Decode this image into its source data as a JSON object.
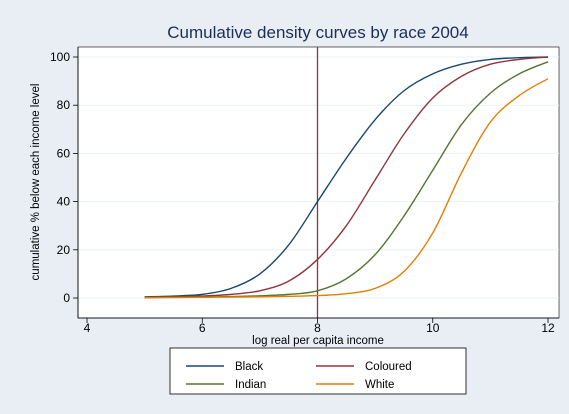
{
  "chart_data": {
    "type": "line",
    "title": "Cumulative density curves by race 2004",
    "xlabel": "log real per capita income",
    "ylabel": "cumulative % below each income level",
    "xlim": [
      4,
      12
    ],
    "ylim": [
      0,
      100
    ],
    "xticks": [
      "4",
      "6",
      "8",
      "10",
      "12"
    ],
    "yticks": [
      "0",
      "20",
      "40",
      "60",
      "80",
      "100"
    ],
    "reference_line": {
      "x": 8,
      "color": "#90353b"
    },
    "grid": "horizontal",
    "legend_position": "bottom",
    "x": [
      5,
      5.5,
      6,
      6.5,
      7,
      7.5,
      8,
      8.5,
      9,
      9.5,
      10,
      10.5,
      11,
      11.5,
      12
    ],
    "series": [
      {
        "name": "Black",
        "color": "#1a476f",
        "values": [
          0.5,
          0.8,
          1.5,
          4,
          10,
          22,
          40,
          58,
          74,
          86,
          93,
          97,
          99,
          99.7,
          100
        ]
      },
      {
        "name": "Coloured",
        "color": "#90353b",
        "values": [
          0.3,
          0.5,
          0.8,
          1.5,
          3,
          7,
          16,
          30,
          49,
          68,
          83,
          92,
          97,
          99,
          100
        ]
      },
      {
        "name": "Indian",
        "color": "#55752f",
        "values": [
          0.2,
          0.3,
          0.4,
          0.6,
          0.9,
          1.5,
          3,
          8,
          18,
          34,
          53,
          72,
          85,
          93,
          98
        ]
      },
      {
        "name": "White",
        "color": "#e37e00",
        "values": [
          0.1,
          0.2,
          0.3,
          0.4,
          0.5,
          0.7,
          1,
          1.8,
          4,
          11,
          27,
          52,
          73,
          84,
          91
        ]
      }
    ]
  }
}
